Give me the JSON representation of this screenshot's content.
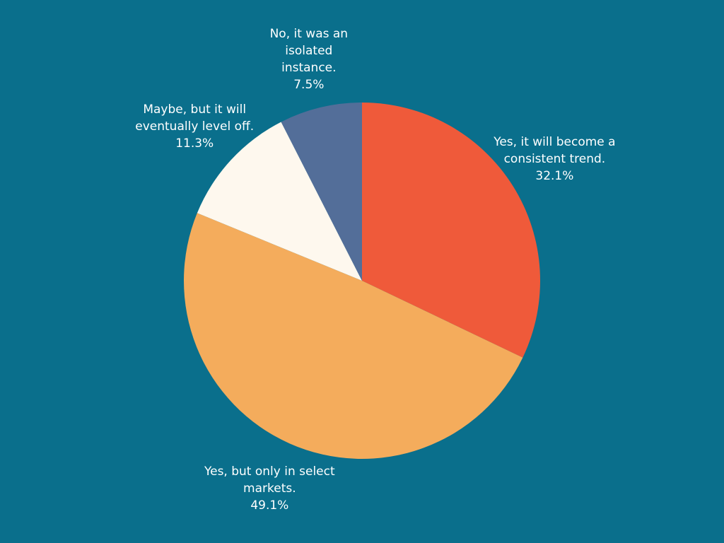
{
  "chart_data": {
    "type": "pie",
    "categories": [
      "Yes, it will become a consistent trend.",
      "Yes, but only in select markets.",
      "Maybe, but it will eventually level off.",
      "No, it was an isolated instance."
    ],
    "values": [
      32.1,
      49.1,
      11.3,
      7.5
    ],
    "value_labels": [
      "32.1%",
      "49.1%",
      "11.3%",
      "7.5%"
    ],
    "colors": [
      "#ef5a3a",
      "#f4ac5c",
      "#fef8ee",
      "#536e99"
    ]
  }
}
